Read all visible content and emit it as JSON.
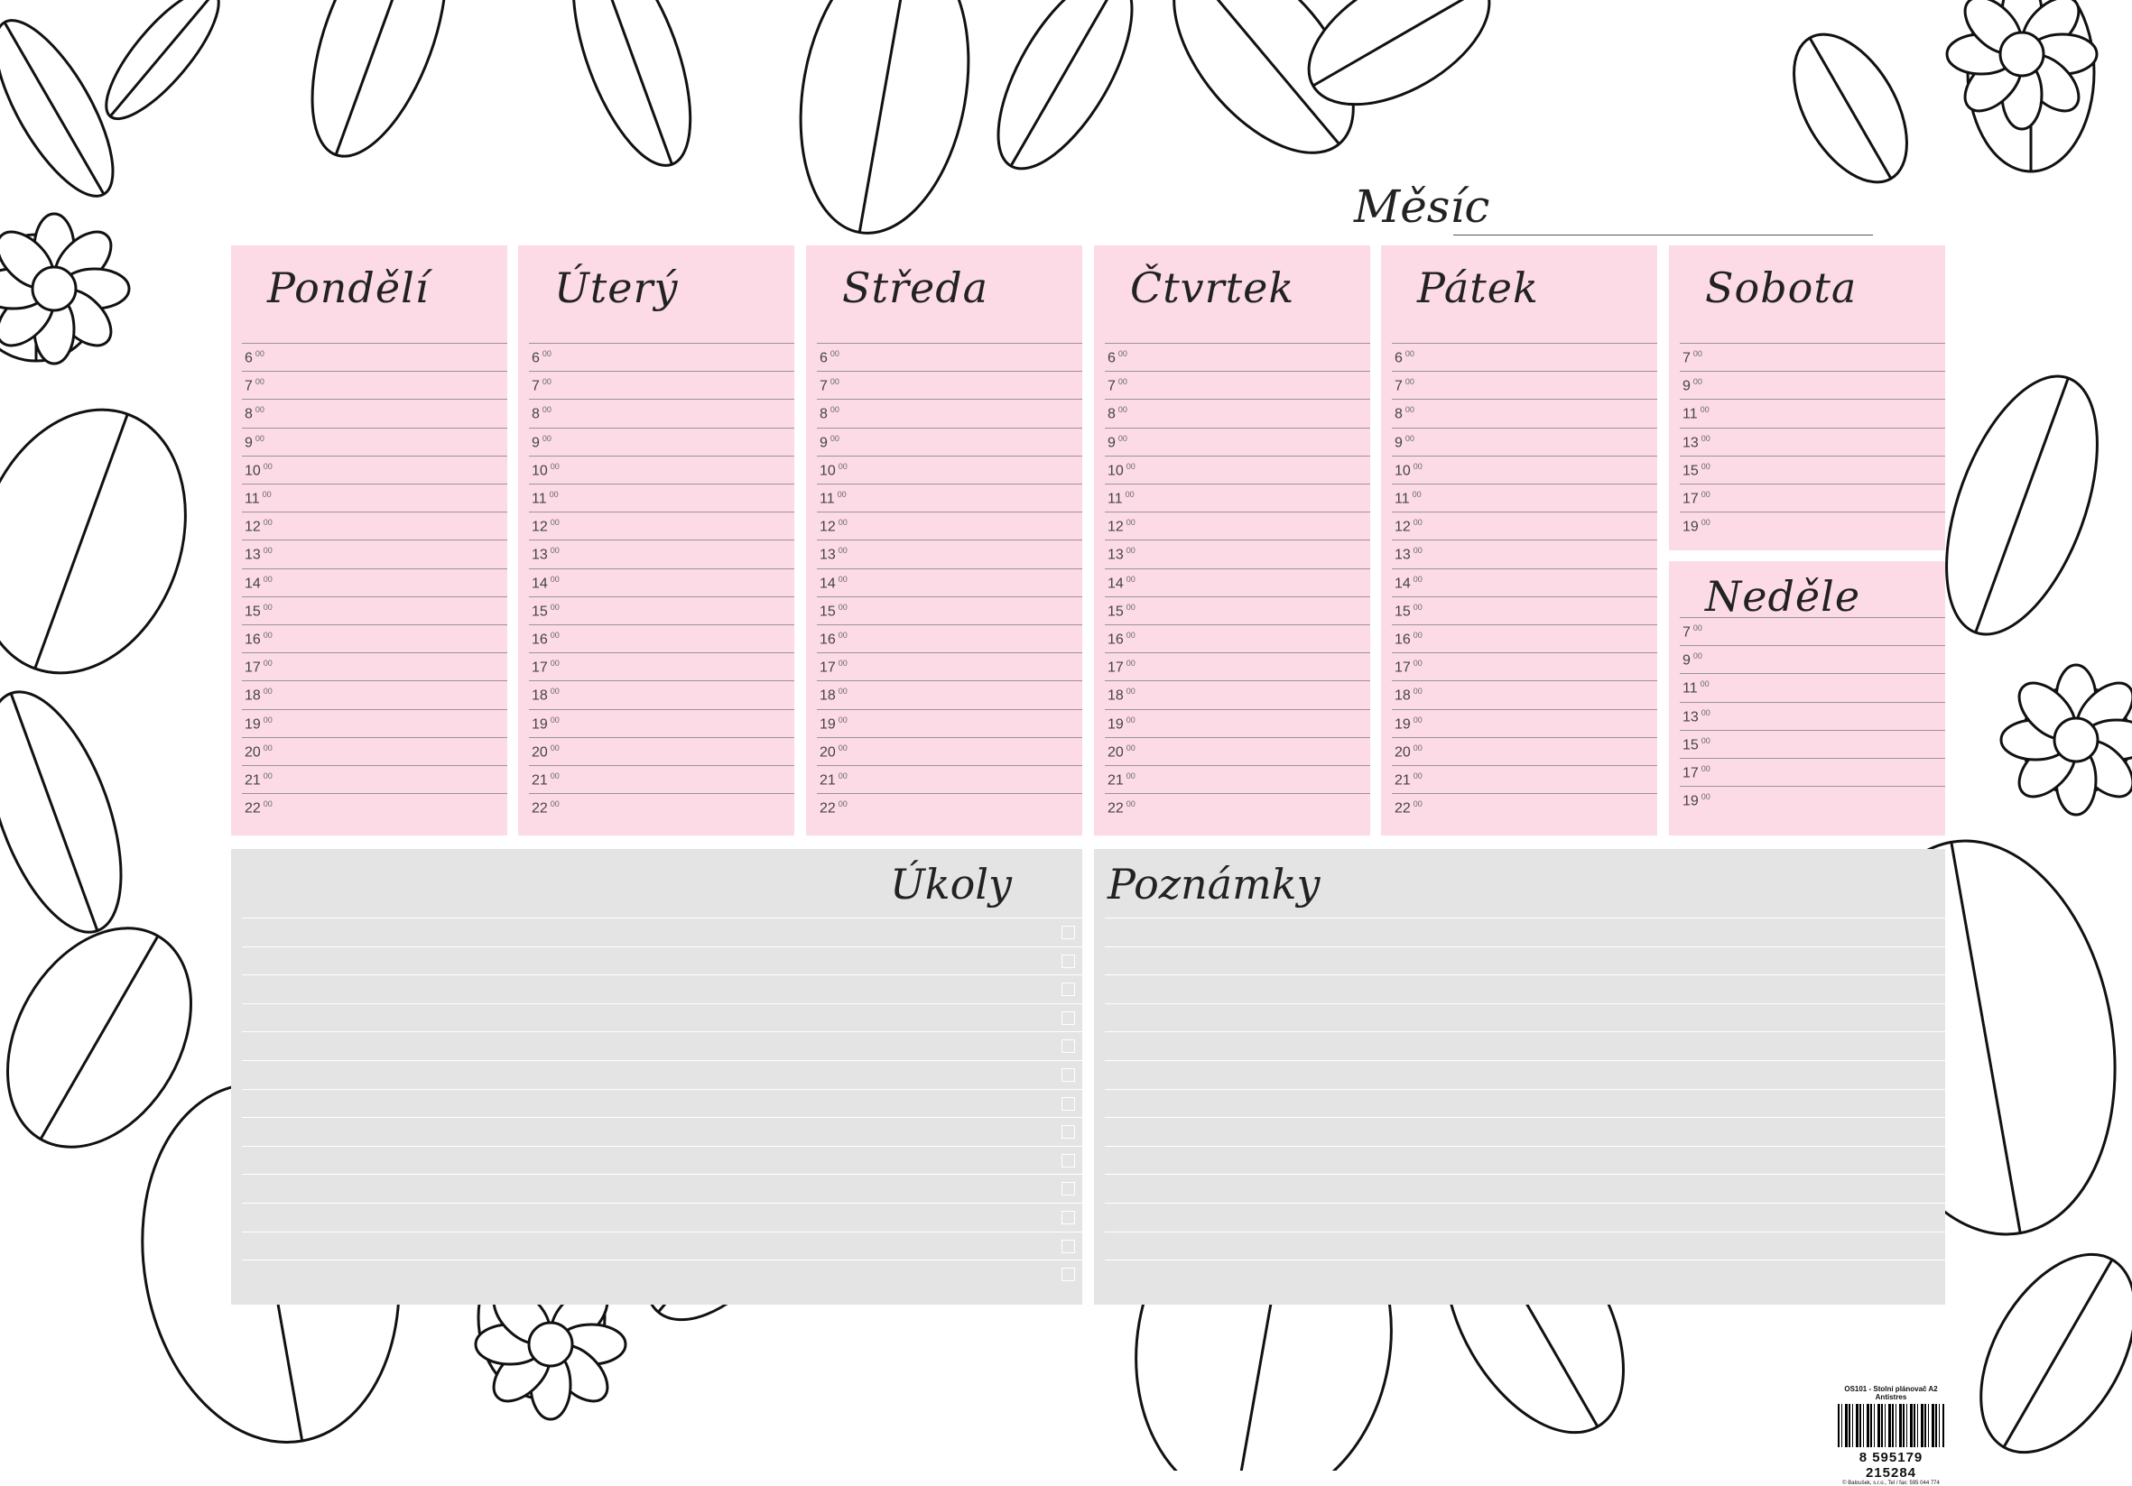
{
  "month_label": "Měsíc",
  "days": [
    {
      "name": "Pondělí",
      "times": [
        "6",
        "7",
        "8",
        "9",
        "10",
        "11",
        "12",
        "13",
        "14",
        "15",
        "16",
        "17",
        "18",
        "19",
        "20",
        "21",
        "22"
      ]
    },
    {
      "name": "Úterý",
      "times": [
        "6",
        "7",
        "8",
        "9",
        "10",
        "11",
        "12",
        "13",
        "14",
        "15",
        "16",
        "17",
        "18",
        "19",
        "20",
        "21",
        "22"
      ]
    },
    {
      "name": "Středa",
      "times": [
        "6",
        "7",
        "8",
        "9",
        "10",
        "11",
        "12",
        "13",
        "14",
        "15",
        "16",
        "17",
        "18",
        "19",
        "20",
        "21",
        "22"
      ]
    },
    {
      "name": "Čtvrtek",
      "times": [
        "6",
        "7",
        "8",
        "9",
        "10",
        "11",
        "12",
        "13",
        "14",
        "15",
        "16",
        "17",
        "18",
        "19",
        "20",
        "21",
        "22"
      ]
    },
    {
      "name": "Pátek",
      "times": [
        "6",
        "7",
        "8",
        "9",
        "10",
        "11",
        "12",
        "13",
        "14",
        "15",
        "16",
        "17",
        "18",
        "19",
        "20",
        "21",
        "22"
      ]
    },
    {
      "name": "Sobota",
      "times": [
        "7",
        "9",
        "11",
        "13",
        "15",
        "17",
        "19"
      ]
    },
    {
      "name": "Neděle",
      "times": [
        "7",
        "9",
        "11",
        "13",
        "15",
        "17",
        "19"
      ]
    }
  ],
  "minutes": "00",
  "tasks": {
    "title": "Úkoly",
    "rows": 13
  },
  "notes": {
    "title": "Poznámky",
    "rows": 13
  },
  "colors": {
    "day_bg": "#fcdbe7",
    "section_bg": "#e4e4e4",
    "line": "#9a9398"
  },
  "product": {
    "code_title": "OS101 - Stolní plánovač A2",
    "subtitle": "Antistres",
    "ean": "8 595179 215284",
    "publisher": "© Baloušek, s.r.o., Tel / fax: 595 044 774"
  }
}
